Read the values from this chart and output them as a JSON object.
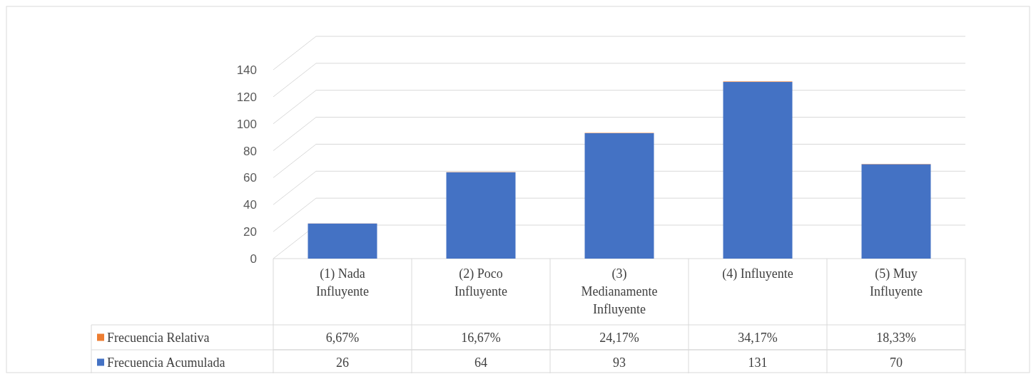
{
  "chart_data": {
    "type": "bar",
    "stacked": true,
    "categories": [
      "(1) Nada Influyente",
      "(2) Poco Influyente",
      "(3) Medianamente Influyente",
      "(4) Influyente",
      "(5) Muy Influyente"
    ],
    "series": [
      {
        "name": "Frecuencia Acumulada",
        "color": "#4472c4",
        "values": [
          26,
          64,
          93,
          131,
          70
        ]
      },
      {
        "name": "Frecuencia Relativa",
        "color": "#ed7d31",
        "values": [
          0.0667,
          0.1667,
          0.2417,
          0.3417,
          0.1833
        ],
        "value_labels": [
          "6,67%",
          "16,67%",
          "24,17%",
          "34,17%",
          "18,33%"
        ]
      }
    ],
    "ylim": [
      0,
      140
    ],
    "yticks": [
      0,
      20,
      40,
      60,
      80,
      100,
      120,
      140
    ],
    "grid": "y",
    "legend": "bottom",
    "data_labels": true
  }
}
